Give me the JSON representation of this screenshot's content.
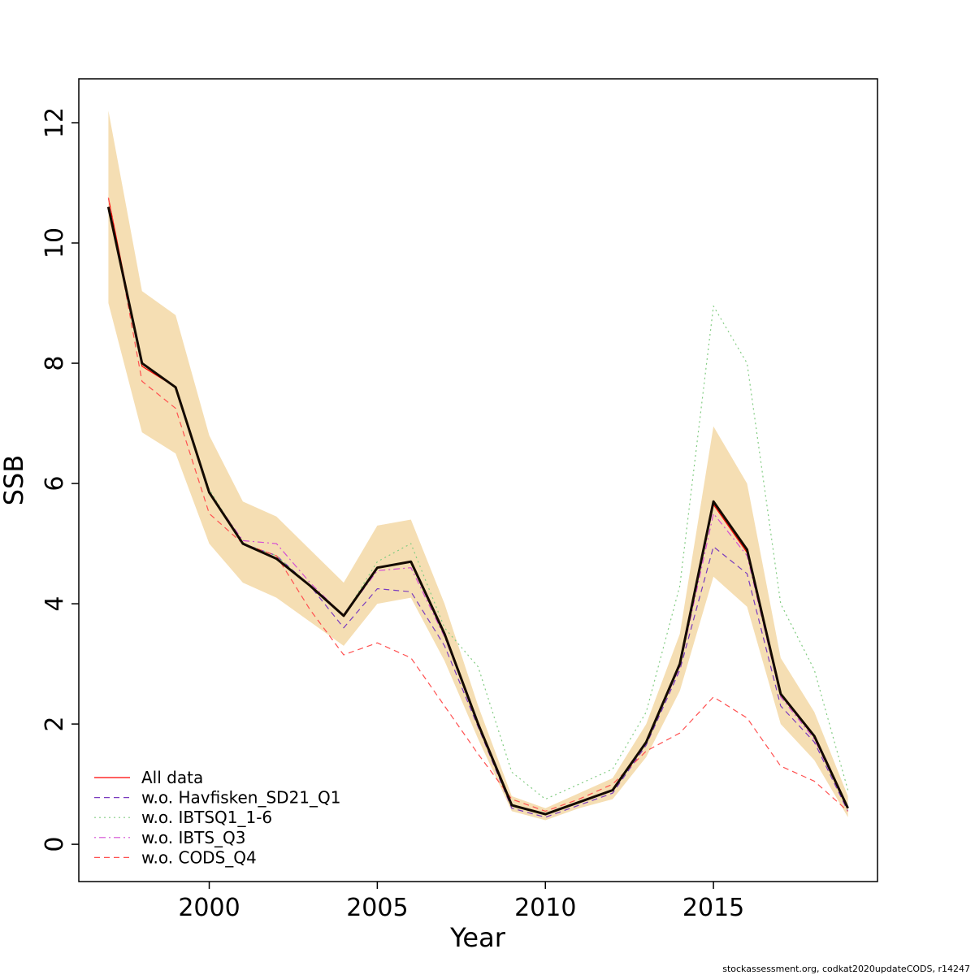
{
  "footer": {
    "text": "stockassessment.org, codkat2020updateCODS, r14247"
  },
  "chart_data": {
    "type": "line",
    "title": "",
    "xlabel": "Year",
    "ylabel": "SSB",
    "x": [
      1997,
      1998,
      1999,
      2000,
      2001,
      2002,
      2003,
      2004,
      2005,
      2006,
      2007,
      2008,
      2009,
      2010,
      2011,
      2012,
      2013,
      2014,
      2015,
      2016,
      2017,
      2018,
      2019
    ],
    "x_ticks": [
      2000,
      2005,
      2010,
      2015
    ],
    "y_ticks": [
      0,
      2,
      4,
      6,
      8,
      10,
      12
    ],
    "xlim": [
      1996.12,
      2019.88
    ],
    "ylim": [
      -0.62,
      12.73
    ],
    "grid": false,
    "legend_position": "bottom-left",
    "band": {
      "name": "confidence-band",
      "color": "#f5deb3",
      "upper": [
        12.2,
        9.2,
        8.8,
        6.8,
        5.7,
        5.45,
        4.9,
        4.35,
        5.3,
        5.4,
        4.0,
        2.3,
        0.8,
        0.6,
        0.85,
        1.1,
        2.0,
        3.5,
        6.95,
        6.0,
        3.1,
        2.2,
        0.8
      ],
      "lower": [
        9.0,
        6.85,
        6.5,
        5.0,
        4.35,
        4.1,
        3.7,
        3.3,
        4.0,
        4.1,
        3.05,
        1.75,
        0.55,
        0.4,
        0.6,
        0.75,
        1.45,
        2.55,
        4.45,
        3.95,
        2.0,
        1.4,
        0.45
      ]
    },
    "series": [
      {
        "name": "All data",
        "color": "#ff0000",
        "dash": "solid",
        "width": 1.2,
        "in_legend": true,
        "values": [
          10.75,
          7.95,
          7.6,
          5.85,
          5.0,
          4.75,
          4.3,
          3.8,
          4.6,
          4.7,
          3.5,
          2.0,
          0.65,
          0.5,
          0.7,
          0.9,
          1.7,
          3.0,
          5.65,
          4.85,
          2.5,
          1.8,
          0.6
        ]
      },
      {
        "name": "w.o. Havfisken_SD21_Q1",
        "color": "#7a3bbf",
        "dash": "dashed",
        "width": 1.2,
        "in_legend": true,
        "values": [
          10.6,
          8.0,
          7.6,
          5.85,
          5.0,
          4.8,
          4.3,
          3.6,
          4.25,
          4.2,
          3.3,
          1.95,
          0.6,
          0.45,
          0.65,
          0.85,
          1.65,
          2.9,
          4.95,
          4.5,
          2.3,
          1.7,
          0.55
        ]
      },
      {
        "name": "w.o. IBTSQ1_1-6",
        "color": "#82cc82",
        "dash": "dotted",
        "width": 1.2,
        "in_legend": true,
        "values": [
          10.6,
          8.0,
          7.6,
          5.9,
          5.0,
          4.8,
          4.3,
          3.8,
          4.7,
          5.0,
          3.6,
          2.95,
          1.2,
          0.75,
          1.0,
          1.25,
          2.2,
          4.3,
          8.95,
          8.0,
          4.0,
          2.9,
          0.9
        ]
      },
      {
        "name": "w.o. IBTS_Q3",
        "color": "#d44fd4",
        "dash": "dashdot",
        "width": 1.2,
        "in_legend": true,
        "values": [
          10.6,
          8.0,
          7.6,
          5.85,
          5.05,
          5.0,
          4.35,
          3.8,
          4.55,
          4.6,
          3.45,
          2.0,
          0.65,
          0.5,
          0.7,
          0.9,
          1.7,
          2.95,
          5.5,
          4.8,
          2.45,
          1.75,
          0.6
        ]
      },
      {
        "name": "w.o. CODS_Q4",
        "color": "#ff5050",
        "dash": "dashed",
        "width": 1.2,
        "in_legend": true,
        "values": [
          10.75,
          7.7,
          7.25,
          5.5,
          5.0,
          4.8,
          3.9,
          3.15,
          3.35,
          3.1,
          2.3,
          1.5,
          0.75,
          0.55,
          0.75,
          1.0,
          1.55,
          1.85,
          2.45,
          2.1,
          1.3,
          1.05,
          0.55
        ]
      },
      {
        "name": "Central estimate",
        "color": "#140a00",
        "dash": "solid",
        "width": 3,
        "in_legend": false,
        "values": [
          10.6,
          8.0,
          7.6,
          5.85,
          5.0,
          4.75,
          4.3,
          3.8,
          4.6,
          4.7,
          3.5,
          2.0,
          0.65,
          0.5,
          0.7,
          0.9,
          1.7,
          3.0,
          5.7,
          4.9,
          2.5,
          1.8,
          0.6
        ]
      }
    ]
  }
}
